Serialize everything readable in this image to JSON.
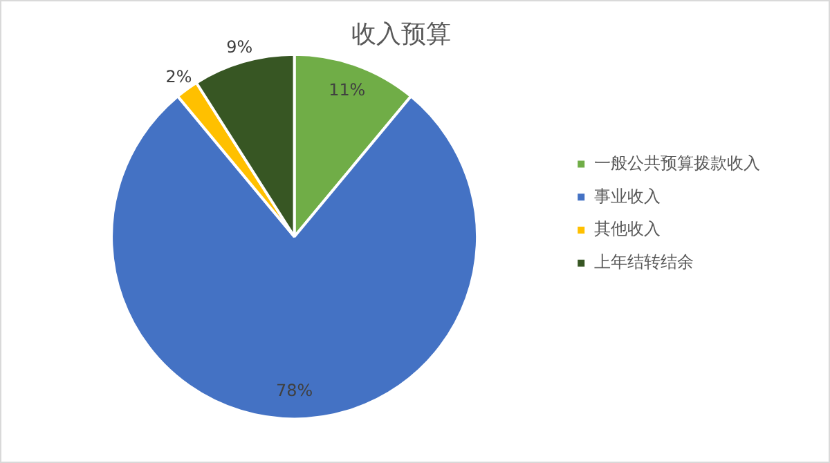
{
  "chart_data": {
    "type": "pie",
    "title": "收入预算",
    "categories": [
      "一般公共预算拨款收入",
      "事业收入",
      "其他收入",
      "上年结转结余"
    ],
    "values": [
      11,
      78,
      2,
      9
    ],
    "colors": [
      "#70ad47",
      "#4472c4",
      "#ffc000",
      "#375623"
    ],
    "value_labels": [
      "11%",
      "78%",
      "2%",
      "9%"
    ],
    "legend": "right"
  }
}
